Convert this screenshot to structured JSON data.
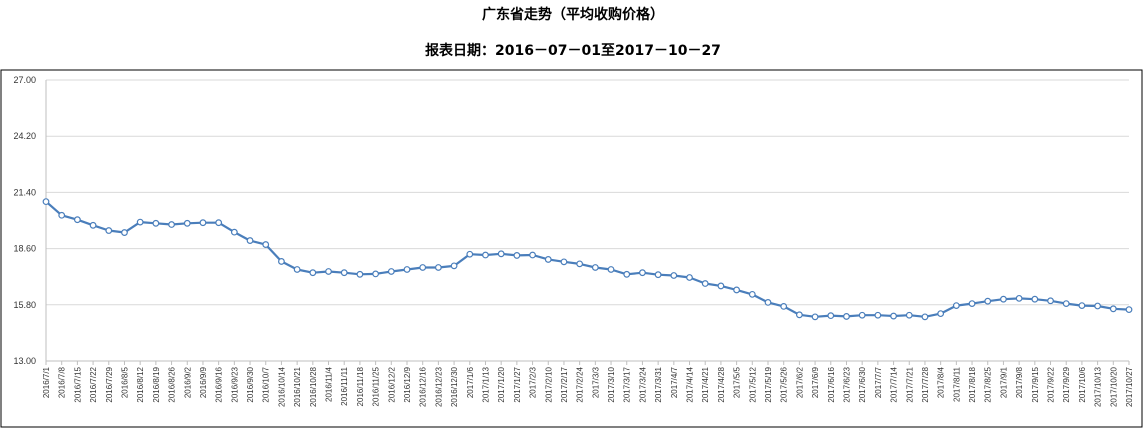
{
  "chart_data": {
    "type": "line",
    "title": "广东省走势（平均收购价格）",
    "subtitle": "报表日期：2016－07－01至2017－10－27",
    "xlabel": "",
    "ylabel": "",
    "ylim": [
      13.0,
      27.0
    ],
    "yticks": [
      "13.00",
      "15.80",
      "18.60",
      "21.40",
      "24.20",
      "27.00"
    ],
    "grid": true,
    "legend": "none",
    "line_color": "#4a7ebb",
    "x": [
      "2016/7/1",
      "2016/7/8",
      "2016/7/15",
      "2016/7/22",
      "2016/7/29",
      "2016/8/5",
      "2016/8/12",
      "2016/8/19",
      "2016/8/26",
      "2016/9/2",
      "2016/9/9",
      "2016/9/16",
      "2016/9/23",
      "2016/9/30",
      "2016/10/7",
      "2016/10/14",
      "2016/10/21",
      "2016/10/28",
      "2016/11/4",
      "2016/11/11",
      "2016/11/18",
      "2016/11/25",
      "2016/12/2",
      "2016/12/9",
      "2016/12/16",
      "2016/12/23",
      "2016/12/30",
      "2017/1/6",
      "2017/1/13",
      "2017/1/20",
      "2017/1/27",
      "2017/2/3",
      "2017/2/10",
      "2017/2/17",
      "2017/2/24",
      "2017/3/3",
      "2017/3/10",
      "2017/3/17",
      "2017/3/24",
      "2017/3/31",
      "2017/4/7",
      "2017/4/14",
      "2017/4/21",
      "2017/4/28",
      "2017/5/5",
      "2017/5/12",
      "2017/5/19",
      "2017/5/26",
      "2017/6/2",
      "2017/6/9",
      "2017/6/16",
      "2017/6/23",
      "2017/6/30",
      "2017/7/7",
      "2017/7/14",
      "2017/7/21",
      "2017/7/28",
      "2017/8/4",
      "2017/8/11",
      "2017/8/18",
      "2017/8/25",
      "2017/9/1",
      "2017/9/8",
      "2017/9/15",
      "2017/9/22",
      "2017/9/29",
      "2017/10/6",
      "2017/10/13",
      "2017/10/20",
      "2017/10/27"
    ],
    "xtick_labels": [
      "2016/7/1",
      "2016/7/8",
      "2016/7/15",
      "2016/7/22",
      "2016/7/29",
      "2016/8/5",
      "2016/8/12",
      "2016/8/19",
      "2016/8/26",
      "2016/9/2",
      "2016/9/9",
      "2016/9/16",
      "2016/9/23",
      "2016/9/30",
      "2016/10/7",
      "2016/10/14",
      "2016/10/21",
      "2016/10/28",
      "2016/11/4",
      "2016/11/11",
      "2016/11/18",
      "2016/11/25",
      "2016/12/2",
      "2016/12/9",
      "2016/12/16",
      "2016/12/23",
      "2016/12/30",
      "2017/1/6",
      "2017/1/13",
      "2017/1/20",
      "2017/1/27",
      "2017/2/3",
      "2017/2/10",
      "2017/2/17",
      "2017/2/24",
      "2017/3/3",
      "2017/3/10",
      "2017/3/17",
      "2017/3/24",
      "2017/3/31",
      "2017/4/7",
      "2017/4/14",
      "2017/4/21",
      "2017/4/28",
      "2017/5/5",
      "2017/5/12",
      "2017/5/19",
      "2017/5/26",
      "2017/6/2",
      "2017/6/9",
      "2017/6/16",
      "2017/6/23",
      "2017/6/30",
      "2017/7/7",
      "2017/7/14",
      "2017/7/21",
      "2017/7/28",
      "2017/8/4",
      "2017/8/11",
      "2017/8/18",
      "2017/8/25",
      "2017/9/1",
      "2017/9/8",
      "2017/9/15",
      "2017/9/22",
      "2017/9/29",
      "2017/10/6",
      "2017/10/13",
      "2017/10/20",
      "2017/10/27"
    ],
    "series": [
      {
        "values": [
          20.94,
          20.26,
          20.04,
          19.76,
          19.5,
          19.4,
          19.92,
          19.86,
          19.8,
          19.86,
          19.89,
          19.89,
          19.42,
          19.0,
          18.8,
          17.96,
          17.56,
          17.4,
          17.46,
          17.4,
          17.32,
          17.34,
          17.46,
          17.56,
          17.66,
          17.66,
          17.74,
          18.32,
          18.28,
          18.34,
          18.26,
          18.28,
          18.06,
          17.94,
          17.84,
          17.66,
          17.56,
          17.32,
          17.4,
          17.3,
          17.26,
          17.16,
          16.86,
          16.74,
          16.54,
          16.32,
          15.92,
          15.72,
          15.3,
          15.2,
          15.26,
          15.22,
          15.28,
          15.28,
          15.24,
          15.28,
          15.2,
          15.36,
          15.76,
          15.86,
          15.98,
          16.08,
          16.12,
          16.08,
          16.0,
          15.86,
          15.76,
          15.74,
          15.6,
          15.56
        ]
      }
    ]
  }
}
